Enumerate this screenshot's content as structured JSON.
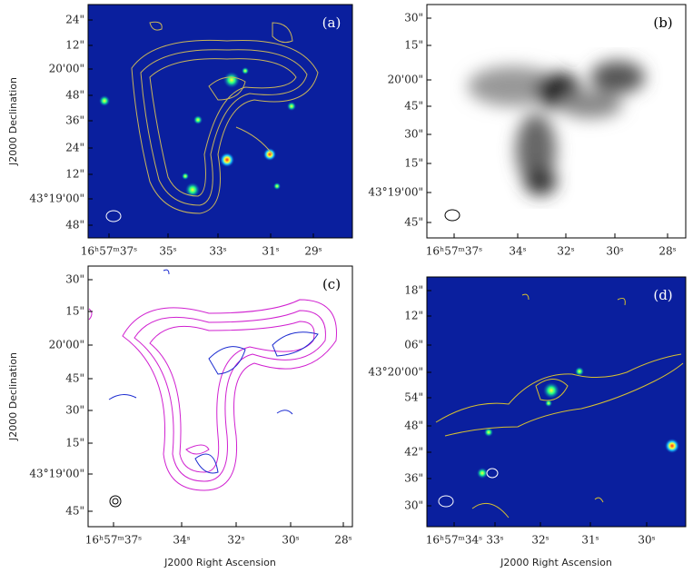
{
  "panels": [
    {
      "label": "(a)",
      "ylabel": "J2000 Declination",
      "yticks": [
        "24\"",
        "12\"",
        "20'00\"",
        "48\"",
        "36\"",
        "24\"",
        "12\"",
        "43°19'00\"",
        "48\""
      ],
      "xticks": [
        "16ʰ57ᵐ37ˢ",
        "35ˢ",
        "33ˢ",
        "31ˢ",
        "29ˢ"
      ]
    },
    {
      "label": "(b)",
      "yticks": [
        "30\"",
        "15\"",
        "20'00\"",
        "45\"",
        "30\"",
        "15\"",
        "43°19'00\"",
        "45\""
      ],
      "xticks": [
        "16ʰ57ᵐ37ˢ",
        "34ˢ",
        "32ˢ",
        "30ˢ",
        "28ˢ"
      ]
    },
    {
      "label": "(c)",
      "ylabel": "J2000 Declination",
      "xlabel": "J2000 Right Ascension",
      "yticks": [
        "30\"",
        "15\"",
        "20'00\"",
        "45\"",
        "30\"",
        "15\"",
        "43°19'00\"",
        "45\""
      ],
      "xticks": [
        "16ʰ57ᵐ37ˢ",
        "34ˢ",
        "32ˢ",
        "30ˢ",
        "28ˢ"
      ]
    },
    {
      "label": "(d)",
      "xlabel": "J2000 Right Ascension",
      "yticks": [
        "18\"",
        "12\"",
        "06\"",
        "43°20'00\"",
        "54\"",
        "48\"",
        "42\"",
        "36\"",
        "30\""
      ],
      "xticks": [
        "16ʰ57ᵐ34ˢ",
        "33ˢ",
        "32ˢ",
        "31ˢ",
        "30ˢ"
      ]
    }
  ]
}
